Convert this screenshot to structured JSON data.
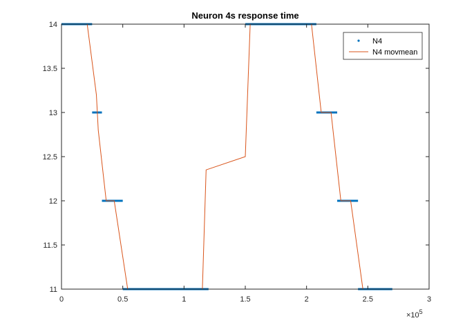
{
  "chart_data": {
    "type": "line",
    "title": "Neuron 4s response time",
    "xlabel": "",
    "ylabel": "",
    "xlim": [
      0,
      300000
    ],
    "ylim": [
      11,
      14
    ],
    "x_exponent_label": "×10",
    "x_exponent_power": "5",
    "x_ticks": [
      {
        "value": 0,
        "label": "0"
      },
      {
        "value": 50000,
        "label": "0.5"
      },
      {
        "value": 100000,
        "label": "1"
      },
      {
        "value": 150000,
        "label": "1.5"
      },
      {
        "value": 200000,
        "label": "2"
      },
      {
        "value": 250000,
        "label": "2.5"
      },
      {
        "value": 300000,
        "label": "3"
      }
    ],
    "y_ticks": [
      {
        "value": 11,
        "label": "11"
      },
      {
        "value": 11.5,
        "label": "11.5"
      },
      {
        "value": 12,
        "label": "12"
      },
      {
        "value": 12.5,
        "label": "12.5"
      },
      {
        "value": 13,
        "label": "13"
      },
      {
        "value": 13.5,
        "label": "13.5"
      },
      {
        "value": 14,
        "label": "14"
      }
    ],
    "grid": false,
    "legend_position": "top-right",
    "series": [
      {
        "name": "N4",
        "style": "points",
        "color": "#0072BD",
        "segments": [
          {
            "x_start": 0,
            "x_end": 25000,
            "y": 14
          },
          {
            "x_start": 25000,
            "x_end": 33000,
            "y": 13
          },
          {
            "x_start": 33000,
            "x_end": 50000,
            "y": 12
          },
          {
            "x_start": 50000,
            "x_end": 120000,
            "y": 11
          },
          {
            "x_start": 150000,
            "x_end": 208000,
            "y": 14
          },
          {
            "x_start": 208000,
            "x_end": 225000,
            "y": 13
          },
          {
            "x_start": 225000,
            "x_end": 242000,
            "y": 12
          },
          {
            "x_start": 242000,
            "x_end": 270000,
            "y": 11
          }
        ]
      },
      {
        "name": "N4 movmean",
        "style": "line",
        "color": "#D95319",
        "points": [
          {
            "x": 0,
            "y": 14
          },
          {
            "x": 21000,
            "y": 14
          },
          {
            "x": 28500,
            "y": 13.2
          },
          {
            "x": 30000,
            "y": 12.8
          },
          {
            "x": 36500,
            "y": 12
          },
          {
            "x": 43000,
            "y": 12
          },
          {
            "x": 54000,
            "y": 11
          },
          {
            "x": 115000,
            "y": 11
          },
          {
            "x": 118000,
            "y": 12.35
          },
          {
            "x": 150000,
            "y": 12.5
          },
          {
            "x": 154000,
            "y": 14
          },
          {
            "x": 204000,
            "y": 14
          },
          {
            "x": 212000,
            "y": 13
          },
          {
            "x": 220000,
            "y": 13
          },
          {
            "x": 228000,
            "y": 12
          },
          {
            "x": 236000,
            "y": 12
          },
          {
            "x": 246000,
            "y": 11
          }
        ]
      }
    ]
  }
}
